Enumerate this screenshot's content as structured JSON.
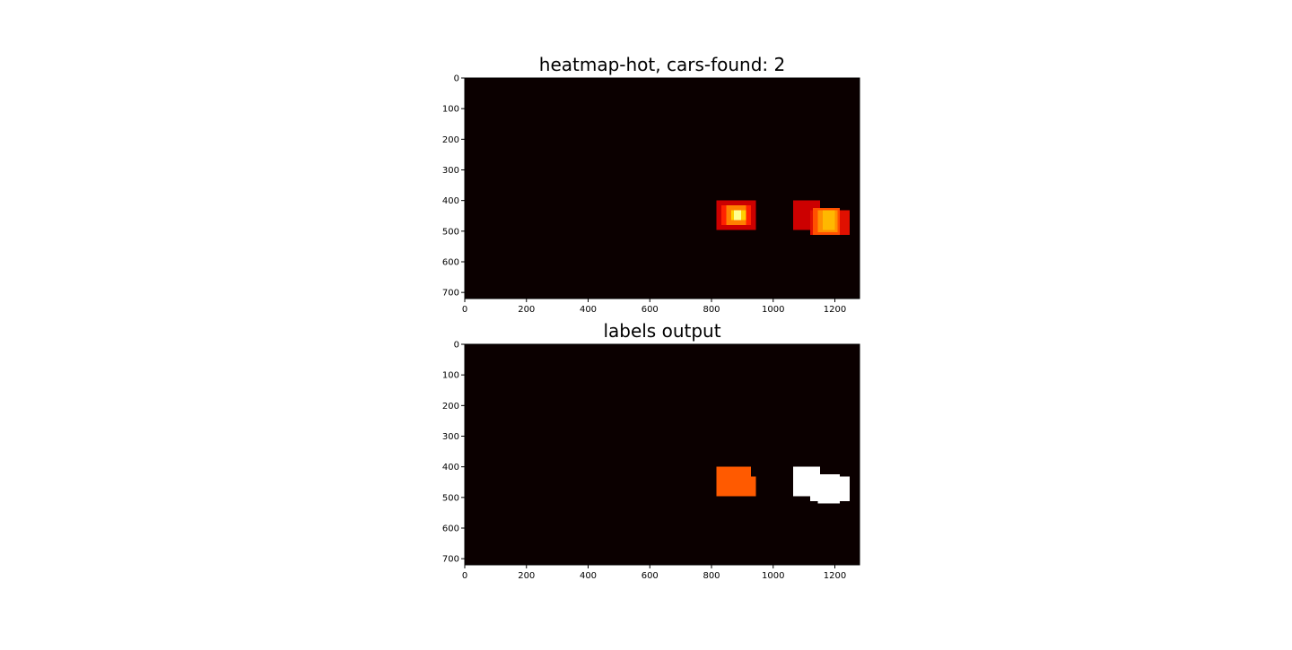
{
  "chart_data": [
    {
      "type": "heatmap",
      "title": "heatmap-hot, cars-found: 2",
      "colormap": "hot",
      "background_color": "#0b0000",
      "xlim": [
        0,
        1280
      ],
      "ylim": [
        720,
        0
      ],
      "xticks": [
        "0",
        "200",
        "400",
        "600",
        "800",
        "1000",
        "1200"
      ],
      "yticks": [
        "0",
        "100",
        "200",
        "300",
        "400",
        "500",
        "600",
        "700"
      ],
      "regions": [
        {
          "x0": 816,
          "x1": 944,
          "y0": 400,
          "y1": 496,
          "color": "#cc0000"
        },
        {
          "x0": 832,
          "x1": 928,
          "y0": 416,
          "y1": 480,
          "color": "#ff2200"
        },
        {
          "x0": 848,
          "x1": 912,
          "y0": 416,
          "y1": 480,
          "color": "#ff8000"
        },
        {
          "x0": 864,
          "x1": 912,
          "y0": 432,
          "y1": 464,
          "color": "#ffd000"
        },
        {
          "x0": 872,
          "x1": 896,
          "y0": 432,
          "y1": 464,
          "color": "#ffff90"
        },
        {
          "x0": 1064,
          "x1": 1152,
          "y0": 400,
          "y1": 496,
          "color": "#cc0000"
        },
        {
          "x0": 1120,
          "x1": 1248,
          "y0": 432,
          "y1": 512,
          "color": "#e01000"
        },
        {
          "x0": 1128,
          "x1": 1216,
          "y0": 424,
          "y1": 512,
          "color": "#ff5000"
        },
        {
          "x0": 1144,
          "x1": 1208,
          "y0": 432,
          "y1": 504,
          "color": "#ff9000"
        },
        {
          "x0": 1160,
          "x1": 1200,
          "y0": 432,
          "y1": 496,
          "color": "#ffb800"
        }
      ]
    },
    {
      "type": "heatmap",
      "title": "labels output",
      "colormap": "hot",
      "background_color": "#0b0000",
      "xlim": [
        0,
        1280
      ],
      "ylim": [
        720,
        0
      ],
      "xticks": [
        "0",
        "200",
        "400",
        "600",
        "800",
        "1000",
        "1200"
      ],
      "yticks": [
        "0",
        "100",
        "200",
        "300",
        "400",
        "500",
        "600",
        "700"
      ],
      "regions": [
        {
          "x0": 816,
          "x1": 928,
          "y0": 400,
          "y1": 496,
          "color": "#ff5a00",
          "label": 1
        },
        {
          "x0": 816,
          "x1": 944,
          "y0": 432,
          "y1": 496,
          "color": "#ff5a00",
          "label": 1
        },
        {
          "x0": 1064,
          "x1": 1152,
          "y0": 400,
          "y1": 496,
          "color": "#ffffff",
          "label": 2
        },
        {
          "x0": 1120,
          "x1": 1248,
          "y0": 432,
          "y1": 512,
          "color": "#ffffff",
          "label": 2
        },
        {
          "x0": 1144,
          "x1": 1216,
          "y0": 424,
          "y1": 520,
          "color": "#ffffff",
          "label": 2
        },
        {
          "x0": 1120,
          "x1": 1152,
          "y0": 496,
          "y1": 504,
          "color": "#ffffff",
          "label": 2
        }
      ]
    }
  ]
}
